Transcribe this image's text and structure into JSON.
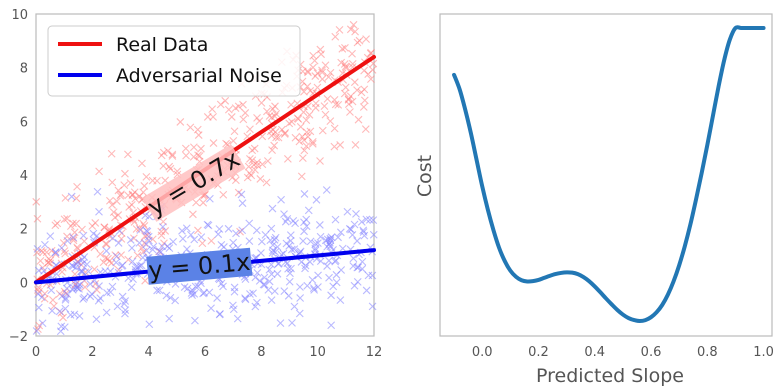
{
  "chart_data": [
    {
      "type": "scatter",
      "xlim": [
        0,
        12
      ],
      "ylim": [
        -2,
        10
      ],
      "xticks": [
        "0",
        "2",
        "4",
        "6",
        "8",
        "10",
        "12"
      ],
      "yticks": [
        "−2",
        "0",
        "2",
        "4",
        "6",
        "8",
        "10"
      ],
      "grid": false,
      "legend_position": "top-left",
      "series": [
        {
          "name": "Real Data",
          "color": "#ee1111",
          "line": {
            "slope": 0.7,
            "intercept": 0,
            "x": [
              0,
              12
            ]
          },
          "scatter_color": "#ff8080",
          "scatter_noise_sd": 1.1,
          "scatter_x_range": [
            0,
            12
          ]
        },
        {
          "name": "Adversarial Noise",
          "color": "#0000ee",
          "line": {
            "slope": 0.1,
            "intercept": 0,
            "x": [
              0,
              12
            ]
          },
          "scatter_color": "#8080ff",
          "scatter_noise_sd": 1.0,
          "scatter_x_range": [
            0,
            12
          ]
        }
      ],
      "annotations": [
        {
          "text": "y = 0.7x",
          "x": 5.6,
          "y": 3.7,
          "rotation_deg": -31,
          "box_color": "#ffc0c0"
        },
        {
          "text": "y = 0.1x",
          "x": 5.8,
          "y": 0.6,
          "rotation_deg": -5,
          "box_color": "#5b82e6"
        }
      ]
    },
    {
      "type": "line",
      "xlabel": "Predicted Slope",
      "ylabel": "Cost",
      "xlim": [
        -0.15,
        1.03
      ],
      "xticks": [
        "0.0",
        "0.2",
        "0.4",
        "0.6",
        "0.8",
        "1.0"
      ],
      "yticks_shown": false,
      "grid": false,
      "color": "#2277b4",
      "series": [
        {
          "x": [
            -0.1,
            -0.08,
            -0.06,
            -0.04,
            -0.02,
            0.0,
            0.02,
            0.04,
            0.06,
            0.08,
            0.1,
            0.12,
            0.14,
            0.16,
            0.18,
            0.2,
            0.22,
            0.24,
            0.26,
            0.28,
            0.3,
            0.32,
            0.34,
            0.36,
            0.38,
            0.4,
            0.42,
            0.44,
            0.46,
            0.48,
            0.5,
            0.52,
            0.54,
            0.56,
            0.58,
            0.6,
            0.62,
            0.64,
            0.66,
            0.68,
            0.7,
            0.72,
            0.74,
            0.76,
            0.78,
            0.8,
            0.82,
            0.84,
            0.86,
            0.88,
            0.9,
            0.92,
            0.94,
            0.96,
            0.98,
            1.0
          ],
          "y": [
            0.84,
            0.79,
            0.72,
            0.64,
            0.55,
            0.46,
            0.38,
            0.31,
            0.25,
            0.205,
            0.172,
            0.151,
            0.139,
            0.135,
            0.136,
            0.14,
            0.147,
            0.154,
            0.16,
            0.164,
            0.166,
            0.165,
            0.16,
            0.15,
            0.136,
            0.118,
            0.098,
            0.077,
            0.057,
            0.038,
            0.022,
            0.01,
            0.003,
            0.0,
            0.003,
            0.013,
            0.03,
            0.055,
            0.09,
            0.135,
            0.19,
            0.255,
            0.33,
            0.415,
            0.505,
            0.6,
            0.7,
            0.8,
            0.89,
            0.96,
            1.0,
            1.0,
            1.0,
            1.0,
            1.0,
            1.0
          ]
        }
      ]
    }
  ]
}
